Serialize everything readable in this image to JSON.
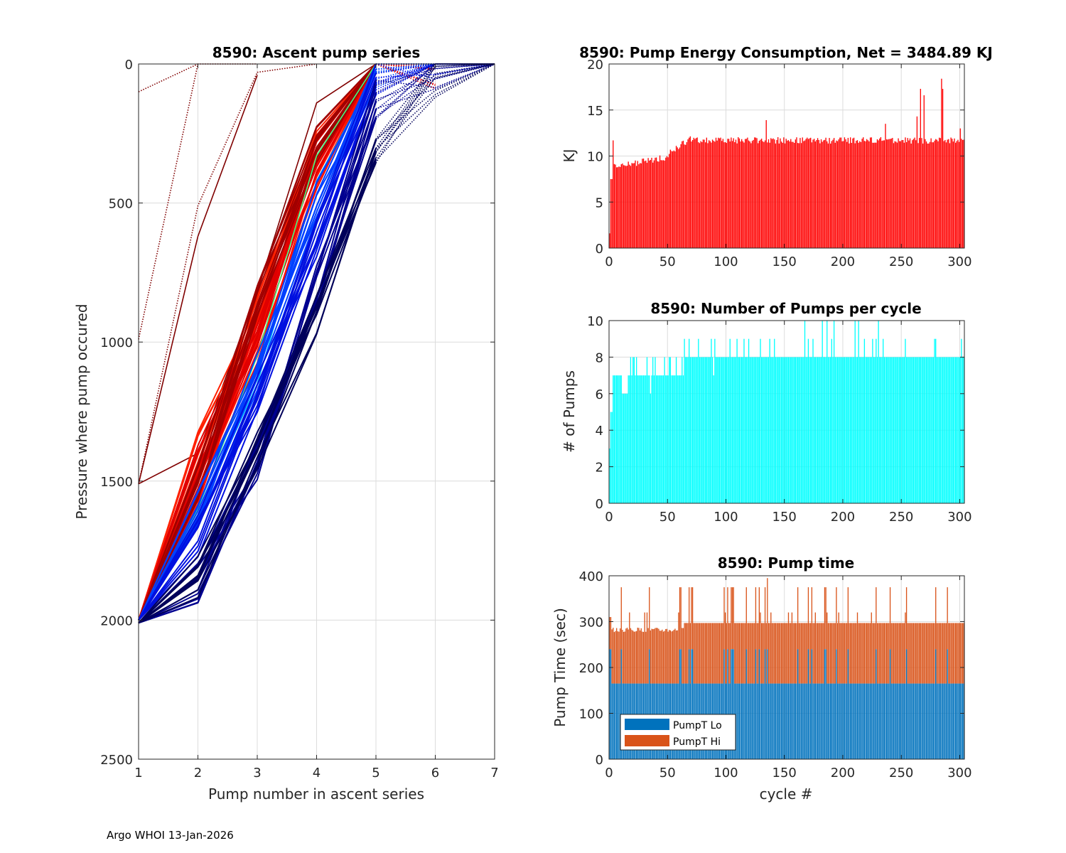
{
  "footer": "Argo WHOI 13-Jan-2026",
  "chart_data": [
    {
      "id": "ascent",
      "type": "line",
      "title": "8590: Ascent pump series",
      "xlabel": "Pump number in ascent series",
      "ylabel": "Pressure where pump occured",
      "xlim": [
        1,
        7
      ],
      "ylim": [
        0,
        2500
      ],
      "y_reversed": true,
      "xticks": [
        1,
        2,
        3,
        4,
        5,
        6,
        7
      ],
      "yticks": [
        0,
        500,
        1000,
        1500,
        2000,
        2500
      ],
      "grid": true,
      "colormap": "jet (by cycle, dark red = early, dark blue = late)",
      "series": [
        {
          "name": "early-dotted-a",
          "color": "#800000",
          "style": "dotted",
          "x": [
            1,
            2
          ],
          "y": [
            100,
            0
          ]
        },
        {
          "name": "early-dotted-b",
          "color": "#800000",
          "style": "dotted",
          "x": [
            1,
            2,
            3
          ],
          "y": [
            990,
            0,
            0
          ]
        },
        {
          "name": "early-dotted-c",
          "color": "#800000",
          "style": "dotted",
          "x": [
            1,
            2,
            3,
            4
          ],
          "y": [
            1510,
            510,
            30,
            0
          ]
        },
        {
          "name": "early-solid-a",
          "color": "#800000",
          "style": "solid",
          "x": [
            1,
            2,
            3
          ],
          "y": [
            1510,
            620,
            40
          ]
        },
        {
          "name": "early-solid-b",
          "color": "#800000",
          "style": "solid",
          "x": [
            1,
            2,
            3,
            4,
            5
          ],
          "y": [
            1510,
            1400,
            820,
            140,
            0
          ]
        },
        {
          "name": "red-bundle-1",
          "color": "#ff2000",
          "style": "solid",
          "x": [
            1,
            2,
            3,
            4,
            5,
            6
          ],
          "y": [
            2000,
            1400,
            900,
            300,
            0,
            0
          ]
        },
        {
          "name": "red-bundle-2",
          "color": "#ff1000",
          "style": "solid",
          "x": [
            1,
            2,
            3,
            4,
            5,
            6
          ],
          "y": [
            2000,
            1550,
            1000,
            380,
            0,
            0
          ]
        },
        {
          "name": "red-bundle-3",
          "color": "#e00000",
          "style": "solid",
          "x": [
            1,
            2,
            3,
            4,
            5,
            6
          ],
          "y": [
            2000,
            1450,
            950,
            320,
            0,
            10
          ]
        },
        {
          "name": "darkred-bundle",
          "color": "#a00000",
          "style": "solid",
          "x": [
            1,
            2,
            3,
            4,
            5,
            6
          ],
          "y": [
            2000,
            1500,
            850,
            280,
            0,
            0
          ]
        },
        {
          "name": "green-line",
          "color": "#40ff80",
          "style": "solid",
          "x": [
            1,
            2,
            3,
            4,
            5,
            6
          ],
          "y": [
            2000,
            1600,
            1050,
            330,
            0,
            0
          ]
        },
        {
          "name": "cyan-line",
          "color": "#00c0ff",
          "style": "solid",
          "x": [
            1,
            2,
            3,
            4,
            5,
            6
          ],
          "y": [
            2000,
            1620,
            1150,
            420,
            30,
            0
          ]
        },
        {
          "name": "blue-bundle-1",
          "color": "#0040ff",
          "style": "solid",
          "x": [
            1,
            2,
            3,
            4,
            5,
            6,
            7
          ],
          "y": [
            2000,
            1600,
            1100,
            500,
            40,
            0,
            0
          ]
        },
        {
          "name": "blue-bundle-2",
          "color": "#0010e0",
          "style": "solid",
          "x": [
            1,
            2,
            3,
            4,
            5,
            6,
            7
          ],
          "y": [
            2000,
            1700,
            1200,
            620,
            60,
            10,
            0
          ]
        },
        {
          "name": "navy-bundle-1",
          "color": "#000090",
          "style": "solid",
          "x": [
            1,
            2,
            3,
            4,
            5,
            6,
            7
          ],
          "y": [
            2010,
            1870,
            1420,
            800,
            120,
            20,
            0
          ]
        },
        {
          "name": "navy-bundle-2",
          "color": "#00005a",
          "style": "solid",
          "x": [
            1,
            2,
            3,
            4,
            5,
            6,
            7
          ],
          "y": [
            2010,
            1850,
            1400,
            900,
            290,
            40,
            0
          ]
        }
      ]
    },
    {
      "id": "energy",
      "type": "bar",
      "title": "8590: Pump Energy Consumption,  Net = 3484.89 KJ",
      "xlabel": "",
      "ylabel": "KJ",
      "xlim": [
        0,
        304
      ],
      "ylim": [
        0,
        20
      ],
      "xticks": [
        0,
        50,
        100,
        150,
        200,
        250,
        300
      ],
      "yticks": [
        0,
        5,
        10,
        15,
        20
      ],
      "grid": true,
      "color": "#ff0000",
      "n_cycles": 304,
      "net_total_kj": 3484.89,
      "trend": [
        {
          "cycle_range": [
            0,
            1
          ],
          "value": 1.6
        },
        {
          "cycle_range": [
            1,
            3
          ],
          "value": 7.5
        },
        {
          "cycle_range": [
            4,
            50
          ],
          "value_start": 8.8,
          "value_end": 9.9
        },
        {
          "cycle_range": [
            50,
            70
          ],
          "value_start": 10.2,
          "value_end": 12
        },
        {
          "cycle_range": [
            70,
            304
          ],
          "value": 11.7
        }
      ],
      "peaks": [
        {
          "cycle": 134,
          "value": 13.9
        },
        {
          "cycle": 236,
          "value": 13.5
        },
        {
          "cycle": 263,
          "value": 14.3
        },
        {
          "cycle": 266,
          "value": 17.3
        },
        {
          "cycle": 269,
          "value": 16.6
        },
        {
          "cycle": 284,
          "value": 18.4
        },
        {
          "cycle": 285,
          "value": 17.3
        },
        {
          "cycle": 300,
          "value": 13
        }
      ]
    },
    {
      "id": "pumps",
      "type": "bar",
      "title": "8590: Number of Pumps per cycle",
      "xlabel": "",
      "ylabel": "# of Pumps",
      "xlim": [
        0,
        304
      ],
      "ylim": [
        0,
        10
      ],
      "xticks": [
        0,
        50,
        100,
        150,
        200,
        250,
        300
      ],
      "yticks": [
        0,
        2,
        4,
        6,
        8,
        10
      ],
      "grid": true,
      "color": "#00ffff",
      "n_cycles": 304,
      "segments": [
        {
          "cycle_range": [
            0,
            1
          ],
          "value": 3
        },
        {
          "cycle_range": [
            1,
            3
          ],
          "value": 5
        },
        {
          "cycle_range": [
            3,
            12
          ],
          "value": 7
        },
        {
          "cycle_range": [
            12,
            16
          ],
          "value": 6
        },
        {
          "cycle_range": [
            16,
            64
          ],
          "value": 7
        },
        {
          "cycle_range": [
            64,
            304
          ],
          "value": 8
        }
      ],
      "max_value": 10
    },
    {
      "id": "pumptime",
      "type": "bar",
      "stacked": true,
      "title": "8590: Pump time",
      "xlabel": "cycle #",
      "ylabel": "Pump Time (sec)",
      "xlim": [
        0,
        304
      ],
      "ylim": [
        0,
        400
      ],
      "xticks": [
        0,
        50,
        100,
        150,
        200,
        250,
        300
      ],
      "yticks": [
        0,
        100,
        200,
        300,
        400
      ],
      "grid": true,
      "n_cycles": 304,
      "legend": {
        "position": "bottom-left",
        "entries": [
          "PumpT Lo",
          "PumpT Hi"
        ]
      },
      "series": [
        {
          "name": "PumpT Lo",
          "color": "#0072bd",
          "typical_value": 165,
          "occasional_value": 240
        },
        {
          "name": "PumpT Hi",
          "color": "#d95319",
          "typical_total": 297,
          "early_total": 282,
          "peak_total": 375,
          "max_total": 395
        }
      ]
    }
  ]
}
